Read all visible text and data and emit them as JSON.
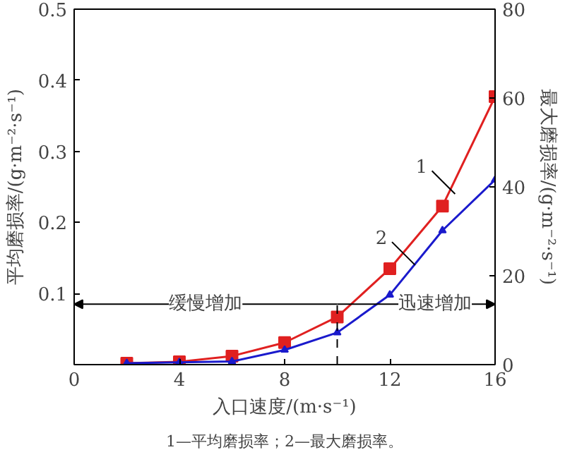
{
  "chart_data": {
    "type": "line",
    "xlabel": "入口速度/(m·s⁻¹)",
    "ylabel": "平均磨损率/(g·m⁻²·s⁻¹)",
    "y2label": "最大磨损率/(g·m⁻²·s⁻¹)",
    "x": [
      2,
      4,
      6,
      8,
      10,
      12,
      14,
      16
    ],
    "series": [
      {
        "color": "#e02020",
        "marker": "square",
        "values": [
          0.002,
          0.004,
          0.012,
          0.031,
          0.067,
          0.135,
          0.223,
          0.377
        ]
      },
      {
        "color": "#1a1acc",
        "marker": "triangle",
        "axis": "y2",
        "values": [
          0.3,
          0.5,
          0.7,
          3.3,
          7.2,
          15.7,
          30.2,
          41.6
        ]
      }
    ],
    "xlim": [
      0,
      16
    ],
    "xticks": [
      0,
      4,
      8,
      12,
      16
    ],
    "ylim": [
      0,
      0.5
    ],
    "yticks": [
      0.1,
      0.2,
      0.3,
      0.4,
      0.5
    ],
    "y2lim": [
      0,
      80
    ],
    "y2ticks": [
      0,
      20,
      40,
      60,
      80
    ],
    "ref_lines": [
      {
        "axis": "x",
        "value": 10,
        "line_style": "dashed",
        "color": "#000000"
      }
    ],
    "annotations": [
      "1",
      "2",
      "缓慢增加",
      "迅速增加",
      "1—平均磨损率；2—最大磨损率。"
    ],
    "grid": false,
    "line_style": "solid"
  }
}
